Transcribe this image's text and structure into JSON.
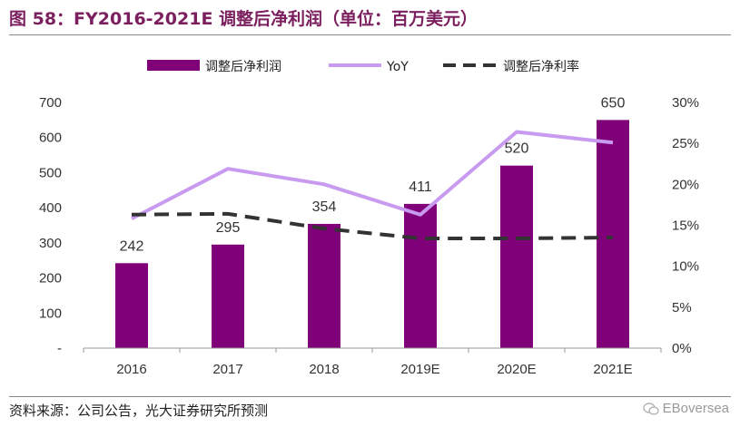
{
  "title": "图 58：FY2016-2021E 调整后净利润（单位：百万美元）",
  "source": "资料来源：公司公告，光大证券研究所预测",
  "watermark": "EBoversea",
  "colors": {
    "bar": "#80007a",
    "yoy": "#c89bf0",
    "margin": "#333333",
    "title": "#7b1f5e"
  },
  "chart_data": {
    "type": "bar",
    "categories": [
      "2016",
      "2017",
      "2018",
      "2019E",
      "2020E",
      "2021E"
    ],
    "series": [
      {
        "name": "调整后净利润",
        "type": "bar",
        "axis": "left",
        "values": [
          242,
          295,
          354,
          411,
          520,
          650
        ]
      },
      {
        "name": "YoY",
        "type": "line",
        "axis": "right",
        "values": [
          0.158,
          0.219,
          0.2,
          0.163,
          0.264,
          0.251
        ]
      },
      {
        "name": "调整后净利率",
        "type": "line-dashed",
        "axis": "right",
        "values": [
          0.163,
          0.164,
          0.146,
          0.134,
          0.134,
          0.135
        ]
      }
    ],
    "y_left": {
      "lim": [
        0,
        700
      ],
      "ticks": [
        "-",
        "100",
        "200",
        "300",
        "400",
        "500",
        "600",
        "700"
      ]
    },
    "y_right": {
      "lim": [
        0,
        0.3
      ],
      "ticks": [
        "0%",
        "5%",
        "10%",
        "15%",
        "20%",
        "25%",
        "30%"
      ]
    },
    "data_labels": [
      "242",
      "295",
      "354",
      "411",
      "520",
      "650"
    ],
    "legend_position": "top",
    "grid": false
  }
}
